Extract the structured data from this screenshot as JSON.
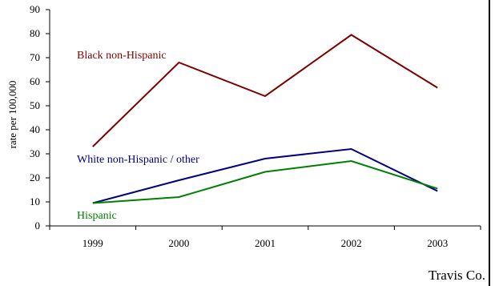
{
  "chart_data": {
    "type": "line",
    "title": "",
    "xlabel": "",
    "ylabel": "rate per 100,000",
    "categories": [
      "1999",
      "2000",
      "2001",
      "2002",
      "2003"
    ],
    "ylim": [
      0,
      90
    ],
    "yticks": [
      0,
      10,
      20,
      30,
      40,
      50,
      60,
      70,
      80,
      90
    ],
    "grid": false,
    "legend": "inline labels",
    "series": [
      {
        "name": "Black non-Hispanic",
        "values": [
          33,
          68,
          54,
          79.5,
          57.5
        ],
        "color": "#800000"
      },
      {
        "name": "White non-Hispanic / other",
        "values": [
          9.5,
          19,
          28,
          32,
          14.5
        ],
        "color": "#000080"
      },
      {
        "name": "Hispanic",
        "values": [
          9.5,
          12,
          22.5,
          27,
          15.5
        ],
        "color": "#008000"
      }
    ]
  },
  "footer": {
    "text": "Travis Co."
  }
}
